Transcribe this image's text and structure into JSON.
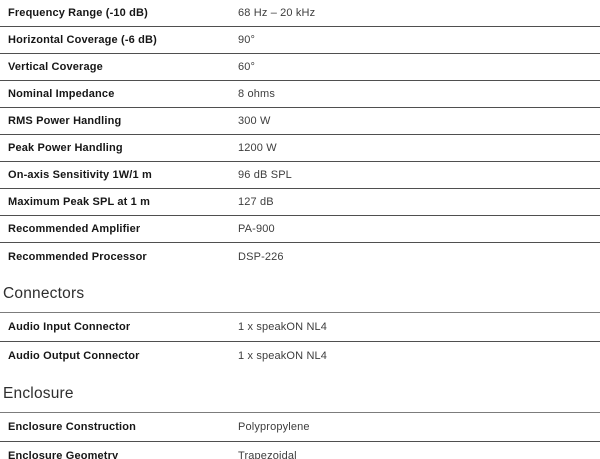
{
  "colors": {
    "background": "#ffffff",
    "label_text": "#161616",
    "value_text": "#3d3d3d",
    "row_divider": "#4f4f4f",
    "heading_divider": "#7c7c7c",
    "heading_text": "#2e2e2e"
  },
  "main_table": {
    "rows": [
      {
        "label": "Frequency Range (-10 dB)",
        "value": "68 Hz – 20 kHz"
      },
      {
        "label": "Horizontal Coverage (-6 dB)",
        "value": "90°"
      },
      {
        "label": "Vertical Coverage",
        "value": "60°"
      },
      {
        "label": "Nominal Impedance",
        "value": "8 ohms"
      },
      {
        "label": "RMS Power Handling",
        "value": "300 W"
      },
      {
        "label": "Peak Power Handling",
        "value": "1200 W"
      },
      {
        "label": "On-axis Sensitivity 1W/1 m",
        "value": "96 dB SPL"
      },
      {
        "label": "Maximum Peak SPL at 1 m",
        "value": "127 dB"
      },
      {
        "label": "Recommended Amplifier",
        "value": "PA-900"
      },
      {
        "label": "Recommended Processor",
        "value": "DSP-226"
      }
    ]
  },
  "sections": [
    {
      "title": "Connectors",
      "rows": [
        {
          "label": "Audio Input Connector",
          "value": "1 x speakON NL4"
        },
        {
          "label": "Audio Output Connector",
          "value": "1 x speakON NL4"
        }
      ]
    },
    {
      "title": "Enclosure",
      "rows": [
        {
          "label": "Enclosure Construction",
          "value": "Polypropylene"
        },
        {
          "label": "Enclosure Geometry",
          "value": "Trapezoidal"
        }
      ]
    }
  ]
}
